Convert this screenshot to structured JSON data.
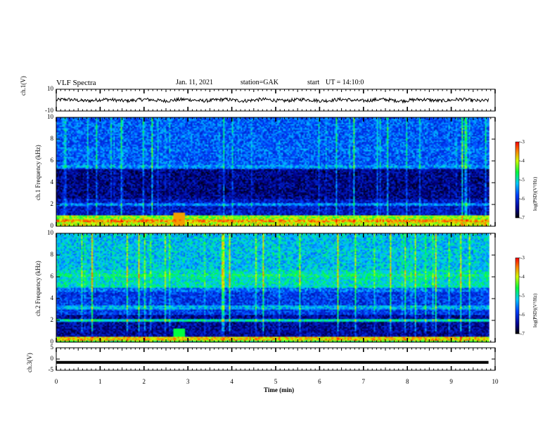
{
  "header": {
    "title": "VLF Spectra",
    "date": "Jan. 11, 2021",
    "station": "station=GAK",
    "start_label": "start",
    "start_time": "UT = 14:10:0"
  },
  "chart_data": [
    {
      "type": "line",
      "panel": "ch1-waveform",
      "ylabel": "ch.1(V)",
      "ylim": [
        -10,
        10
      ],
      "yticks": [
        "10",
        "-10"
      ],
      "xlim": [
        0,
        10
      ],
      "trace_level_V": 0,
      "trace_color": "#000000"
    },
    {
      "type": "heatmap",
      "panel": "ch1-spectrogram",
      "ylabel": "ch.1 Frequency (kHz)",
      "ylim": [
        0,
        10
      ],
      "yticks": [
        "0",
        "2",
        "4",
        "6",
        "8",
        "10"
      ],
      "xlim": [
        0,
        10
      ],
      "data_end_min": 9.85,
      "colorbar": {
        "label": "log(PSD)(V²/Hz)",
        "range": [
          -7,
          -3
        ],
        "ticks": [
          "-3",
          "-4",
          "-5",
          "-6",
          "-7"
        ]
      },
      "bands_kHz": [
        {
          "f": 0.5,
          "level": -3.6
        },
        {
          "f": 0.8,
          "level": -4.2
        },
        {
          "f": 5.5,
          "level": -5.4
        },
        {
          "f": 7.0,
          "level": -5.6
        },
        {
          "f": 2.0,
          "level": -5.5
        }
      ]
    },
    {
      "type": "heatmap",
      "panel": "ch2-spectrogram",
      "ylabel": "ch.2 Frequency (kHz)",
      "ylim": [
        0,
        10
      ],
      "yticks": [
        "0",
        "2",
        "4",
        "6",
        "8",
        "10"
      ],
      "xlim": [
        0,
        10
      ],
      "data_end_min": 9.85,
      "colorbar": {
        "label": "log(PSD)(V²/Hz)",
        "range": [
          -7,
          -3
        ],
        "ticks": [
          "-3",
          "-4",
          "-5",
          "-6",
          "-7"
        ]
      },
      "bands_kHz": [
        {
          "f": 0.3,
          "level": -3.8
        },
        {
          "f": 2.0,
          "level": -5.0
        },
        {
          "f": 3.2,
          "level": -5.3
        },
        {
          "f": 6.1,
          "level": -4.8
        },
        {
          "f": 4.8,
          "level": -5.6
        }
      ]
    },
    {
      "type": "line",
      "panel": "ch3-waveform",
      "ylabel": "ch.3(V)",
      "ylim": [
        -5,
        5
      ],
      "yticks": [
        "5",
        "0",
        "-5"
      ],
      "xlim": [
        0,
        10
      ],
      "trace_level_V": -1.5,
      "trace_color": "#000000"
    }
  ],
  "x_axis": {
    "label": "Time (min)",
    "ticks": [
      "0",
      "1",
      "2",
      "3",
      "4",
      "5",
      "6",
      "7",
      "8",
      "9",
      "10"
    ]
  }
}
